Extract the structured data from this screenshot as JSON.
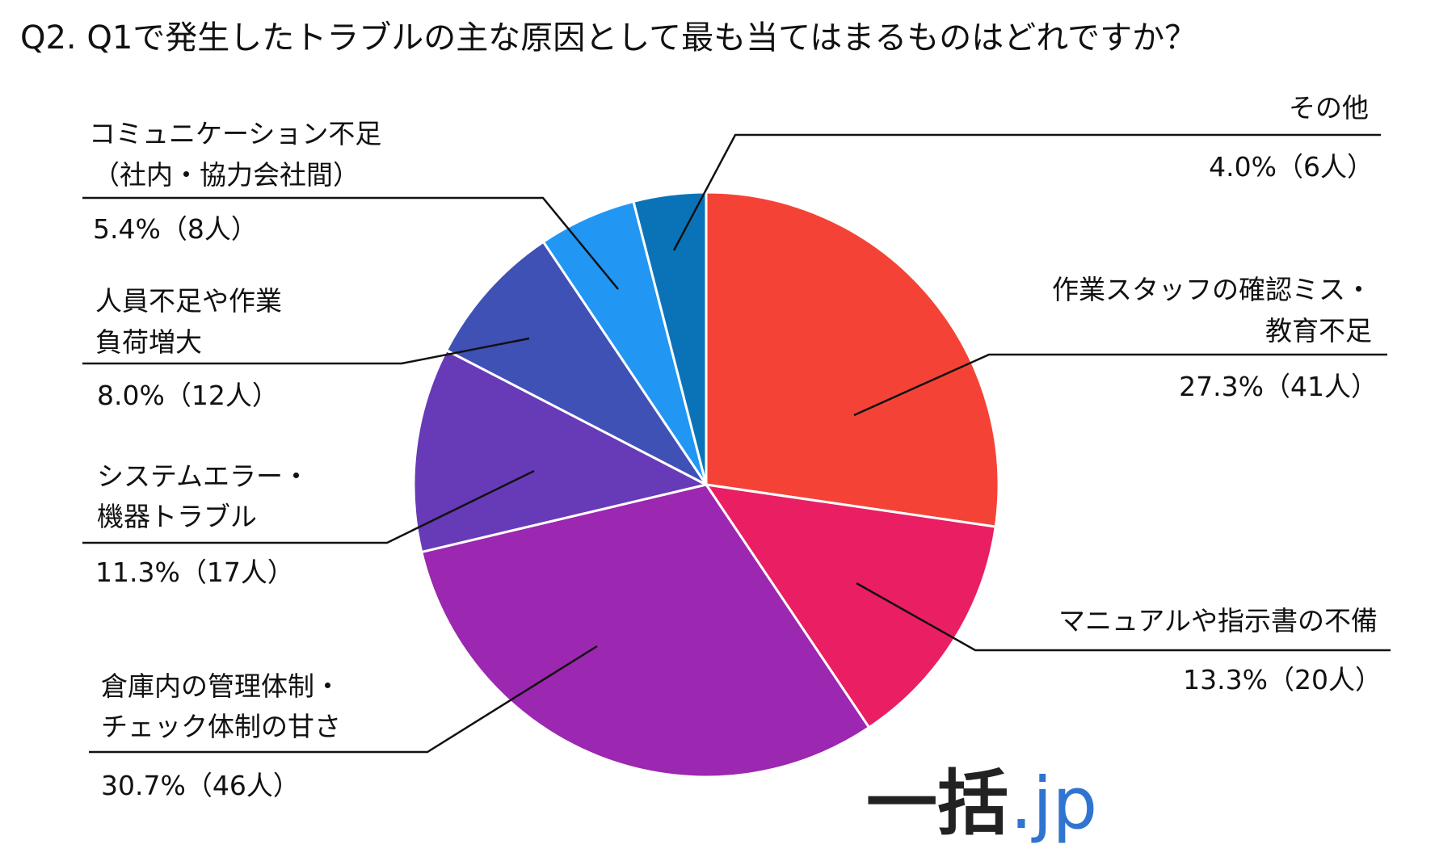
{
  "chart_data": {
    "type": "pie",
    "title": "Q2. Q1で発生したトラブルの主な原因として最も当てはまるものはどれですか？",
    "start": "top",
    "direction": "clockwise",
    "slices": [
      {
        "label_lines": [
          "作業スタッフの確認ミス・",
          "教育不足"
        ],
        "value": 27.3,
        "count_label": "27.3%（41人）",
        "color": "#F44336"
      },
      {
        "label_lines": [
          "マニュアルや指示書の不備"
        ],
        "value": 13.3,
        "count_label": "13.3%（20人）",
        "color": "#E91E63"
      },
      {
        "label_lines": [
          "倉庫内の管理体制・",
          "チェック体制の甘さ"
        ],
        "value": 30.7,
        "count_label": "30.7%（46人）",
        "color": "#9C27B0"
      },
      {
        "label_lines": [
          "システムエラー・",
          "機器トラブル"
        ],
        "value": 11.3,
        "count_label": "11.3%（17人）",
        "color": "#673AB7"
      },
      {
        "label_lines": [
          "人員不足や作業",
          "負荷増大"
        ],
        "value": 8.0,
        "count_label": "8.0%（12人）",
        "color": "#3F51B5"
      },
      {
        "label_lines": [
          "コミュニケーション不足",
          "（社内・協力会社間）"
        ],
        "value": 5.4,
        "count_label": "5.4%（8人）",
        "color": "#2196F3"
      },
      {
        "label_lines": [
          "その他"
        ],
        "value": 4.0,
        "count_label": "4.0%（6人）",
        "color": "#0A73B8"
      }
    ]
  },
  "logo": {
    "part1": "一括",
    "part2": ".jp"
  }
}
